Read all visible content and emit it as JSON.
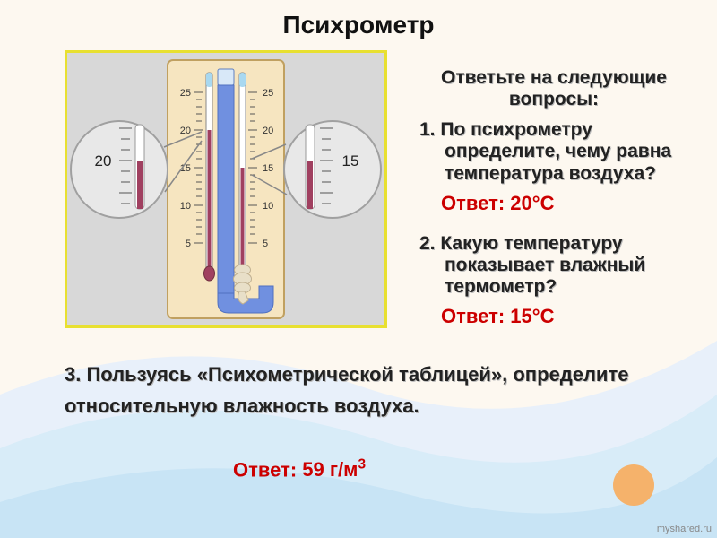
{
  "title": "Психрометр",
  "prompt": "Ответьте на следующие\nвопросы:",
  "q1": {
    "num": "1. ",
    "lines": [
      "По психрометру",
      "определите, чему равна",
      "температура воздуха?"
    ],
    "answer_label": "Ответ:",
    "answer_value": "20°С"
  },
  "q2": {
    "num": "2. ",
    "lines": [
      "Какую температуру",
      "показывает влажный",
      "термометр?"
    ],
    "answer_label": "Ответ:",
    "answer_value": "15°С"
  },
  "q3": {
    "text": "3. Пользуясь «Психометрической таблицей», определите относительную влажность воздуха.",
    "answer_label": "Ответ:",
    "answer_value": "59 г/м",
    "answer_sup": "3"
  },
  "diagram": {
    "left_zoom_label": "20",
    "right_zoom_label": "15",
    "scale_ticks": [
      "25",
      "20",
      "15",
      "10",
      "5"
    ],
    "dry_reading": 20,
    "wet_reading": 15,
    "colors": {
      "panel_bg": "#f6e5c0",
      "panel_border": "#c0a060",
      "mercury": "#a04060",
      "water_tube": "#7090e0",
      "left_therm_liquid": "#d8cfe8",
      "wet_wrap": "#e8dfc8",
      "tick": "#555",
      "zoom_fill": "#e8e8e8",
      "zoom_stroke": "#a0a0a0"
    }
  },
  "watermark": "myshared.ru",
  "style": {
    "background": "#fdf8f0",
    "accent_border": "#e8e030",
    "answer_color": "#c00",
    "corner_dot": "#f5b26b",
    "wave1": "#e8f0fa",
    "wave2": "#d8ecf8",
    "wave3": "#c8e4f5"
  }
}
